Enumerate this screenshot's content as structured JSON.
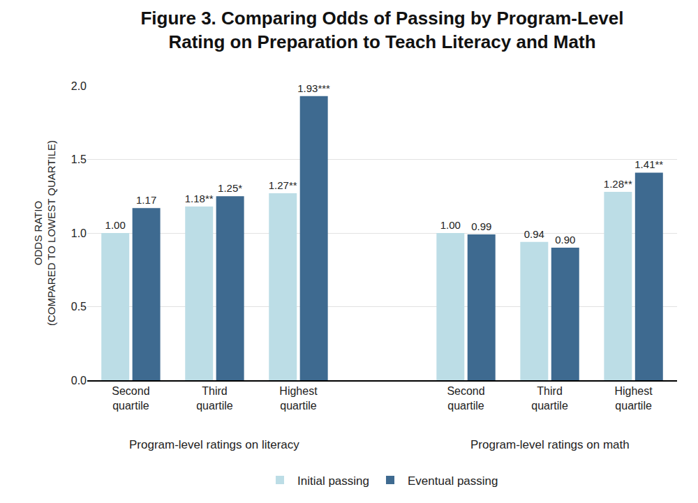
{
  "chart_data": {
    "type": "bar",
    "title": "Figure 3. Comparing Odds of Passing by Program-Level Rating on Preparation to Teach Literacy and Math",
    "y_label": "ODDS RATIO (COMPARED TO LOWEST QUARTILE)",
    "categories": [
      [
        "Program-level ratings on literacy",
        "Second quartile"
      ],
      [
        "Program-level ratings on literacy",
        "Third quartile"
      ],
      [
        "Program-level ratings on literacy",
        "Highest quartile"
      ],
      [
        "Program-level ratings on math",
        "Second quartile"
      ],
      [
        "Program-level ratings on math",
        "Third quartile"
      ],
      [
        "Program-level ratings on math",
        "Highest quartile"
      ]
    ],
    "series": [
      {
        "name": "Initial passing",
        "color": "#bcdde6",
        "values": [
          1.0,
          1.18,
          1.27,
          1.0,
          0.94,
          1.28
        ],
        "value_labels": [
          "1.00",
          "1.18**",
          "1.27**",
          "1.00",
          "0.94",
          "1.28**"
        ]
      },
      {
        "name": "Eventual passing",
        "color": "#3e6a90",
        "values": [
          1.17,
          1.25,
          1.93,
          0.99,
          0.9,
          1.41
        ],
        "value_labels": [
          "1.17",
          "1.25*",
          "1.93***",
          "0.99",
          "0.90",
          "1.41**"
        ]
      }
    ],
    "ylim": [
      0,
      2
    ],
    "yticks": [
      {
        "value": 0,
        "label": "0.0"
      },
      0.5,
      {
        "value": 1,
        "label": "1.0"
      },
      1.5,
      {
        "value": 2,
        "label": "2.0"
      }
    ],
    "grid": true,
    "data_labels": true,
    "legend": "bottom"
  }
}
